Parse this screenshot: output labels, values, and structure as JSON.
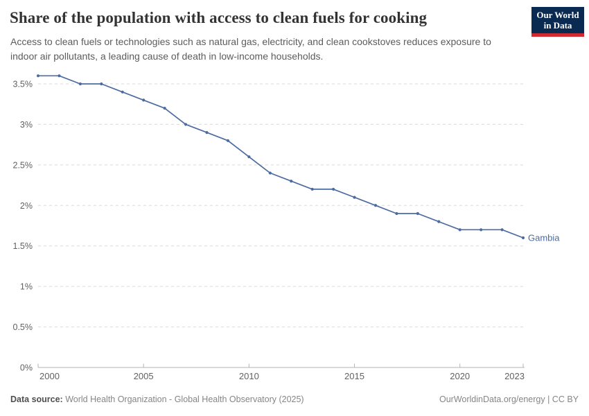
{
  "header": {
    "title": "Share of the population with access to clean fuels for cooking",
    "subtitle": "Access to clean fuels or technologies such as natural gas, electricity, and clean cookstoves reduces exposure to indoor air pollutants, a leading cause of death in low-income households."
  },
  "logo": {
    "line1": "Our World",
    "line2": "in Data",
    "bg_color": "#0b2a51",
    "bar_color": "#cf2b30"
  },
  "chart_data": {
    "type": "line",
    "title": "Share of the population with access to clean fuels for cooking",
    "x": [
      2000,
      2001,
      2002,
      2003,
      2004,
      2005,
      2006,
      2007,
      2008,
      2009,
      2010,
      2011,
      2012,
      2013,
      2014,
      2015,
      2016,
      2017,
      2018,
      2019,
      2020,
      2021,
      2022,
      2023
    ],
    "series": [
      {
        "name": "Gambia",
        "color": "#4c6ba0",
        "values": [
          3.6,
          3.6,
          3.5,
          3.5,
          3.4,
          3.3,
          3.2,
          3.0,
          2.9,
          2.8,
          2.6,
          2.4,
          2.3,
          2.2,
          2.2,
          2.1,
          2.0,
          1.9,
          1.9,
          1.8,
          1.7,
          1.7,
          1.7,
          1.6
        ]
      }
    ],
    "xlabel": "",
    "ylabel": "",
    "ylim": [
      0,
      3.6
    ],
    "xlim": [
      2000,
      2023
    ],
    "yticks": [
      0,
      0.5,
      1,
      1.5,
      2,
      2.5,
      3,
      3.5
    ],
    "ytick_labels": [
      "0%",
      "0.5%",
      "1%",
      "1.5%",
      "2%",
      "2.5%",
      "3%",
      "3.5%"
    ],
    "xticks": [
      2000,
      2005,
      2010,
      2015,
      2020,
      2023
    ],
    "xtick_labels": [
      "2000",
      "2005",
      "2010",
      "2015",
      "2020",
      "2023"
    ],
    "grid": true,
    "grid_color": "#d9d9d9",
    "axis_color": "#b3b3b3",
    "tick_label_color": "#616161",
    "legend_position": "end-of-line label"
  },
  "footer": {
    "datasource_label": "Data source:",
    "datasource_value": "World Health Organization - Global Health Observatory (2025)",
    "rights": "OurWorldinData.org/energy | CC BY"
  }
}
